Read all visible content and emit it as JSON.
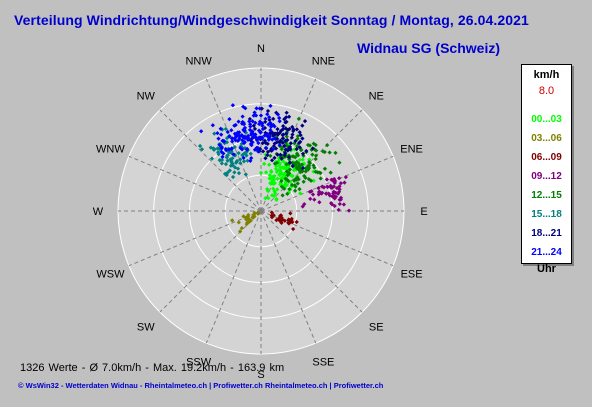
{
  "title": "Verteilung Windrichtung/Windgeschwindigkeit Sonntag / Montag, 26.04.2021",
  "subtitle": "Widnau SG (Schweiz)",
  "stats_line": "1326 Werte   -   Ø 7.0km/h   -   Max. 19.2km/h   -   163.9 km",
  "footer": "© WsWin32  -  Wetterdaten Widnau - Rheintalmeteo.ch | Profiwetter.ch        Rheintalmeteo.ch | Profiwetter.ch",
  "legend": {
    "unit": "km/h",
    "max_value": "8.0",
    "hour_label": "Uhr",
    "ranges": [
      {
        "label": "00...03",
        "color": "#00ff00"
      },
      {
        "label": "03...06",
        "color": "#808000"
      },
      {
        "label": "06...09",
        "color": "#800000"
      },
      {
        "label": "09...12",
        "color": "#800080"
      },
      {
        "label": "12...15",
        "color": "#008000"
      },
      {
        "label": "15...18",
        "color": "#008080"
      },
      {
        "label": "18...21",
        "color": "#000080"
      },
      {
        "label": "21...24",
        "color": "#0000ff"
      }
    ]
  },
  "chart_data": {
    "type": "scatter",
    "title": "Verteilung Windrichtung/Windgeschwindigkeit Sonntag / Montag, 26.04.2021",
    "subtitle": "Widnau SG (Schweiz)",
    "coordinate_system": "polar",
    "directions": [
      "N",
      "NNE",
      "NE",
      "ENE",
      "E",
      "ESE",
      "SE",
      "SSE",
      "S",
      "SSW",
      "SW",
      "WSW",
      "W",
      "WNW",
      "NW",
      "NNW"
    ],
    "radial_max_kmh": 8.0,
    "rings": 4,
    "total_values": 1326,
    "avg_speed_kmh": 7.0,
    "max_speed_kmh": 19.2,
    "wind_run_km": 163.9,
    "series": [
      {
        "name": "00...03",
        "color": "#00ff00",
        "clusters": [
          {
            "dir_deg": 30,
            "speed_kmh": 2.5,
            "spread_deg": 40,
            "spread_kmh": 1.3,
            "count": 130
          }
        ]
      },
      {
        "name": "03...06",
        "color": "#808000",
        "clusters": [
          {
            "dir_deg": 235,
            "speed_kmh": 1.0,
            "spread_deg": 25,
            "spread_kmh": 0.7,
            "count": 25
          }
        ]
      },
      {
        "name": "06...09",
        "color": "#800000",
        "clusters": [
          {
            "dir_deg": 110,
            "speed_kmh": 1.4,
            "spread_deg": 20,
            "spread_kmh": 0.8,
            "count": 30
          }
        ]
      },
      {
        "name": "09...12",
        "color": "#800080",
        "clusters": [
          {
            "dir_deg": 75,
            "speed_kmh": 4.0,
            "spread_deg": 18,
            "spread_kmh": 1.2,
            "count": 60
          }
        ]
      },
      {
        "name": "12...15",
        "color": "#008000",
        "clusters": [
          {
            "dir_deg": 40,
            "speed_kmh": 3.5,
            "spread_deg": 35,
            "spread_kmh": 1.5,
            "count": 120
          }
        ]
      },
      {
        "name": "15...18",
        "color": "#008080",
        "clusters": [
          {
            "dir_deg": 330,
            "speed_kmh": 3.5,
            "spread_deg": 28,
            "spread_kmh": 1.3,
            "count": 80
          }
        ]
      },
      {
        "name": "18...21",
        "color": "#000080",
        "clusters": [
          {
            "dir_deg": 15,
            "speed_kmh": 4.2,
            "spread_deg": 35,
            "spread_kmh": 1.3,
            "count": 110
          }
        ]
      },
      {
        "name": "21...24",
        "color": "#0000ff",
        "clusters": [
          {
            "dir_deg": 350,
            "speed_kmh": 4.5,
            "spread_deg": 32,
            "spread_kmh": 1.2,
            "count": 140
          }
        ]
      }
    ],
    "legend_position": "right",
    "grid": true
  }
}
